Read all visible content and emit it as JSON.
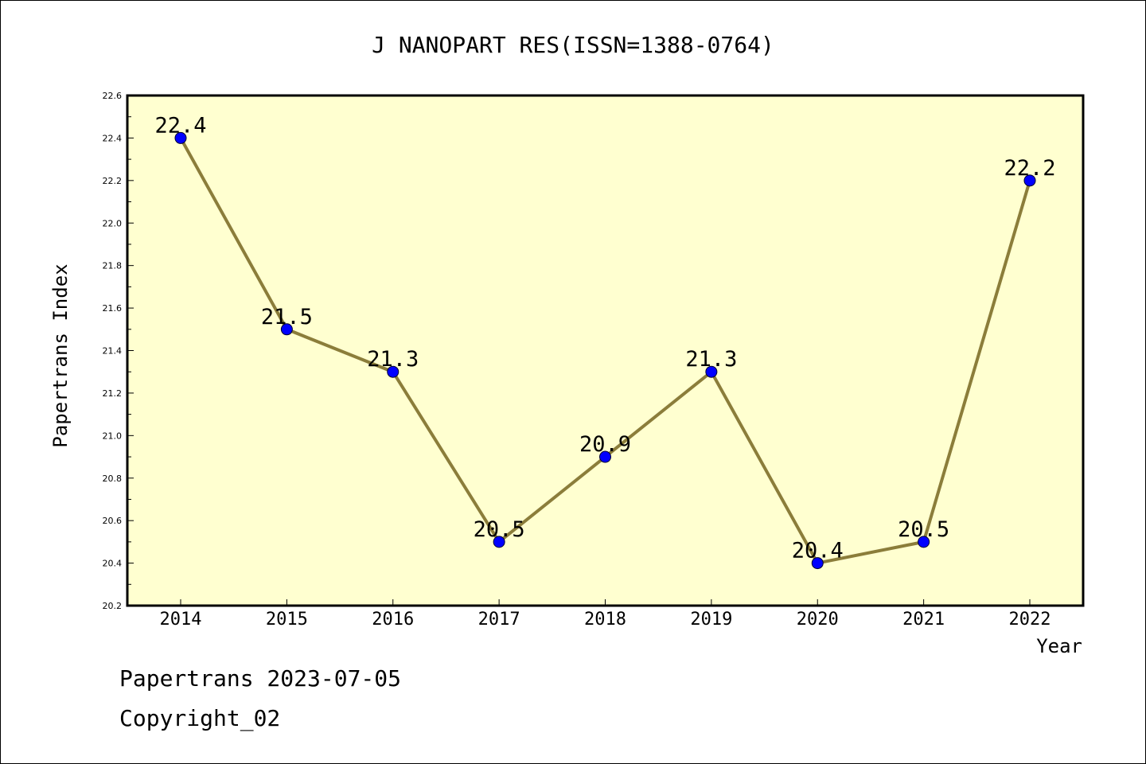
{
  "chart_data": {
    "type": "line",
    "title": "J NANOPART RES(ISSN=1388-0764)",
    "xlabel": "Year",
    "ylabel": "Papertrans Index",
    "categories": [
      "2014",
      "2015",
      "2016",
      "2017",
      "2018",
      "2019",
      "2020",
      "2021",
      "2022"
    ],
    "values": [
      22.4,
      21.5,
      21.3,
      20.5,
      20.9,
      21.3,
      20.4,
      20.5,
      22.2
    ],
    "data_labels": [
      "22.4",
      "21.5",
      "21.3",
      "20.5",
      "20.9",
      "21.3",
      "20.4",
      "20.5",
      "22.2"
    ],
    "ylim": [
      20.2,
      22.6
    ],
    "yticks": [
      "20.2",
      "20.4",
      "20.6",
      "20.8",
      "21.0",
      "21.2",
      "21.4",
      "21.6",
      "21.8",
      "22.0",
      "22.2",
      "22.4",
      "22.6"
    ],
    "grid": false,
    "colors": {
      "plot_background": "#FFFFD0",
      "line": "#8B7D3A",
      "marker": "#0000FF"
    }
  },
  "footer": {
    "date_line": "Papertrans 2023-07-05",
    "copyright": "Copyright_02"
  }
}
